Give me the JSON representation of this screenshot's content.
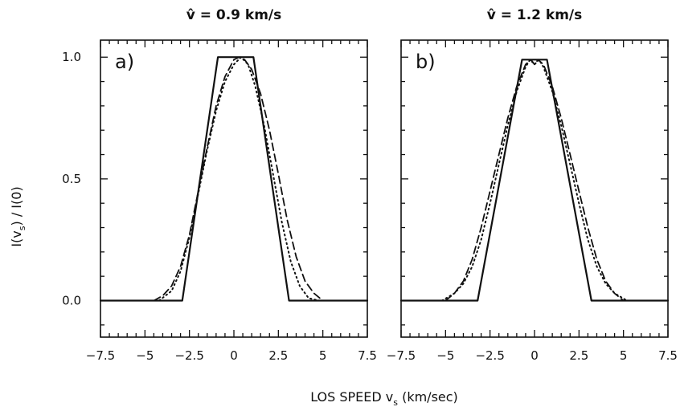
{
  "figure": {
    "xlabel": "LOS SPEED v",
    "xlabel_sub": "s",
    "xlabel_unit": " (km/sec)",
    "ylabel": "I(v",
    "ylabel_sub": "s",
    "ylabel_tail": ") / I(0)"
  },
  "chart_data": [
    {
      "type": "line",
      "panel_label": "a)",
      "title": "v̂ = 0.9 km/s",
      "xlim": [
        -7.5,
        7.5
      ],
      "ylim": [
        -0.15,
        1.07
      ],
      "xticks": [
        -7.5,
        -5,
        -2.5,
        0,
        2.5,
        5,
        7.5
      ],
      "xtick_labels": [
        "−7.5",
        "−5",
        "−2.5",
        "0",
        "2.5",
        "5",
        "7.5"
      ],
      "yticks": [
        0.0,
        0.5,
        1.0
      ],
      "ytick_labels": [
        "0.0",
        "0.5",
        "1.0"
      ],
      "series": [
        {
          "style": "solid",
          "x": [
            -7.5,
            -2.9,
            -0.9,
            1.1,
            3.1,
            7.5
          ],
          "y": [
            0.0,
            0.0,
            1.0,
            1.0,
            0.0,
            0.0
          ]
        },
        {
          "style": "dashed",
          "x": [
            -4.5,
            -4.0,
            -3.5,
            -3.0,
            -2.5,
            -2.0,
            -1.5,
            -1.0,
            -0.5,
            0.0,
            0.3,
            0.6,
            1.0,
            1.5,
            2.0,
            2.5,
            3.0,
            3.5,
            4.0,
            4.5,
            5.0
          ],
          "y": [
            0.0,
            0.02,
            0.06,
            0.14,
            0.27,
            0.45,
            0.63,
            0.8,
            0.92,
            0.99,
            1.0,
            0.99,
            0.95,
            0.85,
            0.7,
            0.52,
            0.33,
            0.18,
            0.08,
            0.03,
            0.0
          ]
        },
        {
          "style": "dotted",
          "x": [
            -4.2,
            -3.5,
            -3.0,
            -2.5,
            -2.0,
            -1.5,
            -1.0,
            -0.5,
            0.0,
            0.4,
            0.8,
            1.2,
            1.7,
            2.2,
            2.7,
            3.2,
            3.7,
            4.2,
            4.8
          ],
          "y": [
            0.0,
            0.04,
            0.12,
            0.26,
            0.44,
            0.62,
            0.78,
            0.9,
            0.97,
            1.0,
            0.97,
            0.88,
            0.72,
            0.52,
            0.32,
            0.16,
            0.06,
            0.01,
            0.0
          ]
        }
      ]
    },
    {
      "type": "line",
      "panel_label": "b)",
      "title": "v̂ = 1.2 km/s",
      "xlim": [
        -7.5,
        7.5
      ],
      "ylim": [
        -0.15,
        1.07
      ],
      "xticks": [
        -7.5,
        -5,
        -2.5,
        0,
        2.5,
        5,
        7.5
      ],
      "xtick_labels": [
        "−7.5",
        "−5",
        "−2.5",
        "0",
        "2.5",
        "5",
        "7.5"
      ],
      "yticks": [
        0.0,
        0.5,
        1.0
      ],
      "ytick_labels": [
        "0.0",
        "0.5",
        "1.0"
      ],
      "series": [
        {
          "style": "solid",
          "x": [
            -7.5,
            -3.2,
            -0.7,
            0.7,
            3.2,
            7.5
          ],
          "y": [
            0.0,
            0.0,
            0.99,
            0.99,
            0.0,
            0.0
          ]
        },
        {
          "style": "dashed",
          "x": [
            -5.0,
            -4.5,
            -4.0,
            -3.5,
            -3.0,
            -2.5,
            -2.0,
            -1.5,
            -1.0,
            -0.5,
            -0.2,
            0.0,
            0.2,
            0.5,
            1.0,
            1.5,
            2.0,
            2.5,
            3.0,
            3.5,
            4.0,
            4.5,
            5.0
          ],
          "y": [
            0.0,
            0.03,
            0.08,
            0.17,
            0.3,
            0.45,
            0.6,
            0.75,
            0.88,
            0.97,
            0.99,
            0.97,
            0.99,
            0.97,
            0.88,
            0.75,
            0.6,
            0.45,
            0.3,
            0.17,
            0.08,
            0.03,
            0.0
          ]
        },
        {
          "style": "dotted",
          "x": [
            -5.2,
            -4.5,
            -4.0,
            -3.5,
            -3.0,
            -2.5,
            -2.0,
            -1.5,
            -1.0,
            -0.5,
            -0.25,
            0.0,
            0.25,
            0.5,
            1.0,
            1.5,
            2.0,
            2.5,
            3.0,
            3.5,
            4.0,
            4.5,
            5.2
          ],
          "y": [
            0.0,
            0.03,
            0.07,
            0.14,
            0.25,
            0.4,
            0.56,
            0.72,
            0.86,
            0.96,
            0.99,
            0.97,
            0.99,
            0.96,
            0.86,
            0.72,
            0.56,
            0.4,
            0.25,
            0.14,
            0.07,
            0.03,
            0.0
          ]
        }
      ]
    }
  ]
}
